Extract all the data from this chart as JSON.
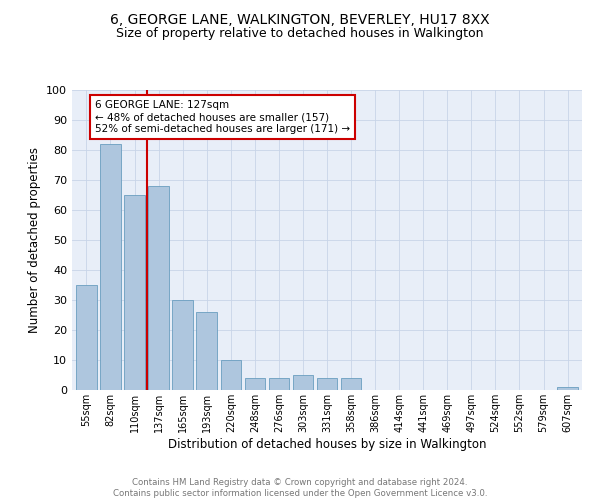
{
  "title": "6, GEORGE LANE, WALKINGTON, BEVERLEY, HU17 8XX",
  "subtitle": "Size of property relative to detached houses in Walkington",
  "xlabel": "Distribution of detached houses by size in Walkington",
  "ylabel": "Number of detached properties",
  "categories": [
    "55sqm",
    "82sqm",
    "110sqm",
    "137sqm",
    "165sqm",
    "193sqm",
    "220sqm",
    "248sqm",
    "276sqm",
    "303sqm",
    "331sqm",
    "358sqm",
    "386sqm",
    "414sqm",
    "441sqm",
    "469sqm",
    "497sqm",
    "524sqm",
    "552sqm",
    "579sqm",
    "607sqm"
  ],
  "values": [
    35,
    82,
    65,
    68,
    30,
    26,
    10,
    4,
    4,
    5,
    4,
    4,
    0,
    0,
    0,
    0,
    0,
    0,
    0,
    0,
    1
  ],
  "bar_color": "#aec6de",
  "bar_edge_color": "#6a9ec0",
  "vline_x": 2.5,
  "vline_color": "#cc0000",
  "annotation_text": "6 GEORGE LANE: 127sqm\n← 48% of detached houses are smaller (157)\n52% of semi-detached houses are larger (171) →",
  "annotation_box_color": "#ffffff",
  "annotation_box_edge": "#cc0000",
  "annotation_fontsize": 7.5,
  "grid_color": "#c8d4e8",
  "background_color": "#e8eef8",
  "ylim": [
    0,
    100
  ],
  "yticks": [
    0,
    10,
    20,
    30,
    40,
    50,
    60,
    70,
    80,
    90,
    100
  ],
  "footer_text": "Contains HM Land Registry data © Crown copyright and database right 2024.\nContains public sector information licensed under the Open Government Licence v3.0.",
  "title_fontsize": 10,
  "subtitle_fontsize": 9
}
